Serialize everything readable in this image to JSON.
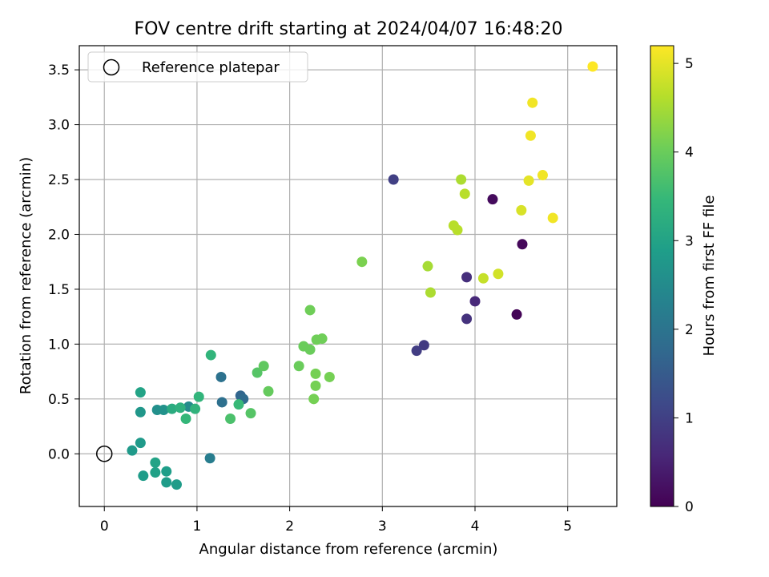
{
  "chart_data": {
    "type": "scatter",
    "title": "FOV centre drift starting at 2024/04/07 16:48:20",
    "xlabel": "Angular distance from reference (arcmin)",
    "ylabel": "Rotation from reference (arcmin)",
    "xlim": [
      -0.27,
      5.53
    ],
    "ylim": [
      -0.48,
      3.72
    ],
    "x_ticks": [
      0,
      1,
      2,
      3,
      4,
      5
    ],
    "y_ticks": [
      0.0,
      0.5,
      1.0,
      1.5,
      2.0,
      2.5,
      3.0,
      3.5
    ],
    "x_tick_labels": [
      "0",
      "1",
      "2",
      "3",
      "4",
      "5"
    ],
    "y_tick_labels": [
      "0.0",
      "0.5",
      "1.0",
      "1.5",
      "2.0",
      "2.5",
      "3.0",
      "3.5"
    ],
    "grid": true,
    "legend": {
      "position": "top-left",
      "label": "Reference platepar",
      "marker": "open-circle"
    },
    "reference_point": {
      "x": 0.0,
      "y": 0.0
    },
    "colorbar": {
      "label": "Hours from first FF file",
      "min": 0,
      "max": 5.2,
      "ticks": [
        0,
        1,
        2,
        3,
        4,
        5
      ],
      "tick_labels": [
        "0",
        "1",
        "2",
        "3",
        "4",
        "5"
      ],
      "colormap": "viridis"
    },
    "colormap_stops": [
      "#440154",
      "#482878",
      "#3e4989",
      "#31688e",
      "#26828e",
      "#1f9e89",
      "#35b779",
      "#6ece58",
      "#b5de2b",
      "#fde725"
    ],
    "points": [
      {
        "x": 4.45,
        "y": 1.27,
        "c": 0.05
      },
      {
        "x": 4.51,
        "y": 1.91,
        "c": 0.1
      },
      {
        "x": 4.19,
        "y": 2.32,
        "c": 0.15
      },
      {
        "x": 4.0,
        "y": 1.39,
        "c": 0.6
      },
      {
        "x": 3.91,
        "y": 1.61,
        "c": 0.7
      },
      {
        "x": 3.91,
        "y": 1.23,
        "c": 0.75
      },
      {
        "x": 3.45,
        "y": 0.99,
        "c": 0.9
      },
      {
        "x": 3.37,
        "y": 0.94,
        "c": 0.95
      },
      {
        "x": 3.12,
        "y": 2.5,
        "c": 1.0
      },
      {
        "x": 1.47,
        "y": 0.53,
        "c": 1.7
      },
      {
        "x": 1.5,
        "y": 0.5,
        "c": 1.8
      },
      {
        "x": 1.27,
        "y": 0.47,
        "c": 1.9
      },
      {
        "x": 1.26,
        "y": 0.7,
        "c": 1.95
      },
      {
        "x": 1.14,
        "y": -0.04,
        "c": 2.2
      },
      {
        "x": 0.91,
        "y": 0.43,
        "c": 2.5
      },
      {
        "x": 0.57,
        "y": 0.4,
        "c": 2.6
      },
      {
        "x": 0.64,
        "y": 0.4,
        "c": 2.65
      },
      {
        "x": 0.39,
        "y": 0.38,
        "c": 2.75
      },
      {
        "x": 0.39,
        "y": 0.1,
        "c": 2.8
      },
      {
        "x": 0.3,
        "y": 0.03,
        "c": 2.8
      },
      {
        "x": 0.42,
        "y": -0.2,
        "c": 2.85
      },
      {
        "x": 0.67,
        "y": -0.26,
        "c": 2.85
      },
      {
        "x": 0.78,
        "y": -0.28,
        "c": 2.85
      },
      {
        "x": 0.67,
        "y": -0.16,
        "c": 2.9
      },
      {
        "x": 0.55,
        "y": -0.17,
        "c": 2.95
      },
      {
        "x": 0.55,
        "y": -0.08,
        "c": 3.0
      },
      {
        "x": 0.39,
        "y": 0.56,
        "c": 3.0
      },
      {
        "x": 0.73,
        "y": 0.41,
        "c": 3.2
      },
      {
        "x": 0.82,
        "y": 0.42,
        "c": 3.3
      },
      {
        "x": 0.98,
        "y": 0.41,
        "c": 3.35
      },
      {
        "x": 1.02,
        "y": 0.52,
        "c": 3.4
      },
      {
        "x": 0.88,
        "y": 0.32,
        "c": 3.45
      },
      {
        "x": 1.15,
        "y": 0.9,
        "c": 3.4
      },
      {
        "x": 1.45,
        "y": 0.45,
        "c": 3.5
      },
      {
        "x": 1.36,
        "y": 0.32,
        "c": 3.7
      },
      {
        "x": 1.58,
        "y": 0.37,
        "c": 3.8
      },
      {
        "x": 1.65,
        "y": 0.74,
        "c": 3.8
      },
      {
        "x": 1.72,
        "y": 0.8,
        "c": 3.9
      },
      {
        "x": 1.77,
        "y": 0.57,
        "c": 3.95
      },
      {
        "x": 2.1,
        "y": 0.8,
        "c": 4.0
      },
      {
        "x": 2.15,
        "y": 0.98,
        "c": 4.0
      },
      {
        "x": 2.22,
        "y": 0.95,
        "c": 4.0
      },
      {
        "x": 2.22,
        "y": 1.31,
        "c": 4.05
      },
      {
        "x": 2.29,
        "y": 1.04,
        "c": 4.05
      },
      {
        "x": 2.35,
        "y": 1.05,
        "c": 4.05
      },
      {
        "x": 2.28,
        "y": 0.73,
        "c": 4.1
      },
      {
        "x": 2.28,
        "y": 0.62,
        "c": 4.1
      },
      {
        "x": 2.26,
        "y": 0.5,
        "c": 4.1
      },
      {
        "x": 2.43,
        "y": 0.7,
        "c": 4.1
      },
      {
        "x": 2.78,
        "y": 1.75,
        "c": 4.15
      },
      {
        "x": 3.49,
        "y": 1.71,
        "c": 4.5
      },
      {
        "x": 3.52,
        "y": 1.47,
        "c": 4.55
      },
      {
        "x": 3.85,
        "y": 2.5,
        "c": 4.55
      },
      {
        "x": 3.89,
        "y": 2.37,
        "c": 4.65
      },
      {
        "x": 3.77,
        "y": 2.08,
        "c": 4.65
      },
      {
        "x": 3.81,
        "y": 2.04,
        "c": 4.65
      },
      {
        "x": 4.09,
        "y": 1.6,
        "c": 4.75
      },
      {
        "x": 4.25,
        "y": 1.64,
        "c": 4.85
      },
      {
        "x": 4.5,
        "y": 2.22,
        "c": 4.9
      },
      {
        "x": 4.58,
        "y": 2.49,
        "c": 5.0
      },
      {
        "x": 4.6,
        "y": 2.9,
        "c": 5.1
      },
      {
        "x": 4.62,
        "y": 3.2,
        "c": 5.1
      },
      {
        "x": 4.73,
        "y": 2.54,
        "c": 5.1
      },
      {
        "x": 4.84,
        "y": 2.15,
        "c": 5.1
      },
      {
        "x": 5.27,
        "y": 3.53,
        "c": 5.2
      }
    ]
  }
}
